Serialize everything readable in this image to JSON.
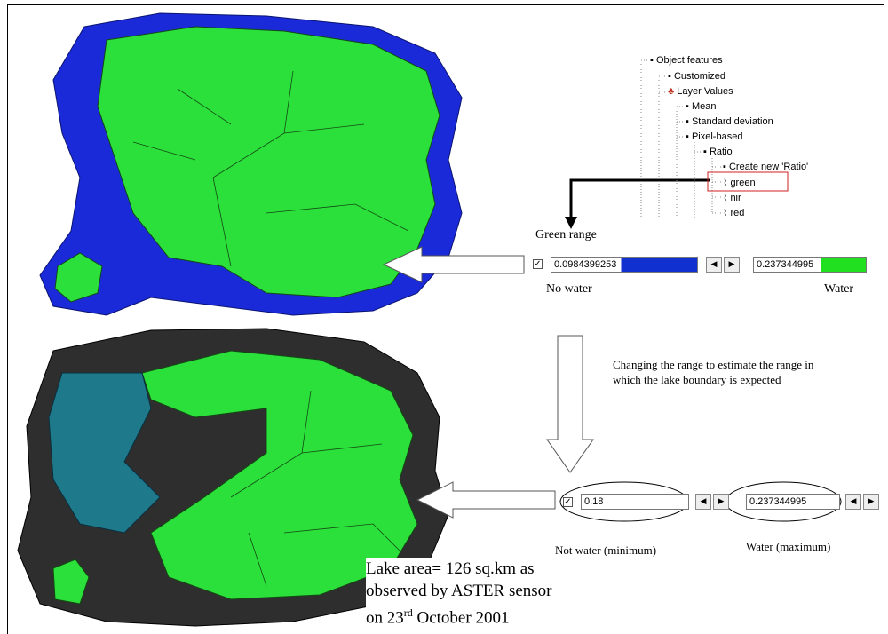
{
  "tree": {
    "items": [
      "Object features",
      "Customized",
      "Layer Values",
      "Mean",
      "Standard deviation",
      "Pixel-based",
      "Ratio",
      "Create new 'Ratio'",
      "green",
      "nir",
      "red"
    ]
  },
  "range1": {
    "title": "Green range",
    "min_value": "0.0984399253",
    "max_value": "0.237344995",
    "min_label": "No water",
    "max_label": "Water"
  },
  "note": "Changing the range to estimate the range in which the lake boundary is expected",
  "range2": {
    "min_value": "0.18",
    "max_value": "0.237344995",
    "min_label": "Not water (minimum)",
    "max_label": "Water (maximum)"
  },
  "caption": {
    "line1": "Lake area= 126 sq.km as",
    "line2": "observed by ASTER sensor",
    "line3_start": "on 23",
    "line3_sup": "rd",
    "line3_end": " October 2001"
  }
}
